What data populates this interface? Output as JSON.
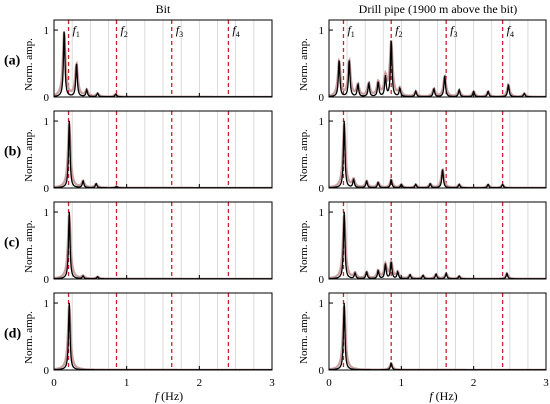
{
  "columns": [
    {
      "title": "Bit"
    },
    {
      "title": "Drill pipe (1900 m above the bit)"
    }
  ],
  "row_labels": [
    "(a)",
    "(b)",
    "(c)",
    "(d)"
  ],
  "y_axis_label": "Norm. amp.",
  "x_axis_label_f": "f",
  "x_axis_label_unit": " (Hz)",
  "colors": {
    "spectrum": "#000000",
    "smoothed": "#c8a0a0",
    "marker": "#d0202a",
    "grid": "#d2d2d2",
    "axis": "#000000"
  },
  "chart_data": {
    "type": "line",
    "x_axis": {
      "label": "f (Hz)",
      "range": [
        0,
        3
      ],
      "ticks": [
        0,
        1,
        2,
        3
      ]
    },
    "y_axis": {
      "label": "Norm. amp.",
      "range": [
        0,
        1.15
      ],
      "ticks": [
        0,
        1
      ]
    },
    "grid": "vertical",
    "harmonic_markers": [
      {
        "label": "f1",
        "x": 0.2
      },
      {
        "label": "f2",
        "x": 0.86
      },
      {
        "label": "f3",
        "x": 1.62
      },
      {
        "label": "f4",
        "x": 2.4
      }
    ],
    "panels": [
      {
        "column": "Bit",
        "row": "(a)",
        "peaks": [
          {
            "x": 0.14,
            "y": 1.0
          },
          {
            "x": 0.31,
            "y": 0.5
          },
          {
            "x": 0.45,
            "y": 0.1
          },
          {
            "x": 0.6,
            "y": 0.05
          },
          {
            "x": 0.85,
            "y": 0.04
          }
        ]
      },
      {
        "column": "Drill pipe",
        "row": "(a)",
        "peaks": [
          {
            "x": 0.14,
            "y": 0.55
          },
          {
            "x": 0.28,
            "y": 0.55
          },
          {
            "x": 0.4,
            "y": 0.18
          },
          {
            "x": 0.55,
            "y": 0.2
          },
          {
            "x": 0.68,
            "y": 0.22
          },
          {
            "x": 0.78,
            "y": 0.3
          },
          {
            "x": 0.86,
            "y": 0.85
          },
          {
            "x": 0.98,
            "y": 0.12
          },
          {
            "x": 1.2,
            "y": 0.08
          },
          {
            "x": 1.45,
            "y": 0.12
          },
          {
            "x": 1.6,
            "y": 0.32
          },
          {
            "x": 1.8,
            "y": 0.1
          },
          {
            "x": 2.0,
            "y": 0.08
          },
          {
            "x": 2.2,
            "y": 0.08
          },
          {
            "x": 2.48,
            "y": 0.18
          },
          {
            "x": 2.7,
            "y": 0.05
          }
        ]
      },
      {
        "column": "Bit",
        "row": "(b)",
        "peaks": [
          {
            "x": 0.21,
            "y": 1.0
          },
          {
            "x": 0.4,
            "y": 0.1
          },
          {
            "x": 0.58,
            "y": 0.06
          },
          {
            "x": 0.86,
            "y": 0.02
          }
        ]
      },
      {
        "column": "Drill pipe",
        "row": "(b)",
        "peaks": [
          {
            "x": 0.21,
            "y": 1.0
          },
          {
            "x": 0.34,
            "y": 0.12
          },
          {
            "x": 0.52,
            "y": 0.1
          },
          {
            "x": 0.68,
            "y": 0.08
          },
          {
            "x": 0.86,
            "y": 0.12
          },
          {
            "x": 1.0,
            "y": 0.05
          },
          {
            "x": 1.2,
            "y": 0.05
          },
          {
            "x": 1.4,
            "y": 0.06
          },
          {
            "x": 1.57,
            "y": 0.28
          },
          {
            "x": 1.8,
            "y": 0.05
          },
          {
            "x": 2.2,
            "y": 0.05
          },
          {
            "x": 2.4,
            "y": 0.05
          }
        ]
      },
      {
        "column": "Bit",
        "row": "(c)",
        "peaks": [
          {
            "x": 0.21,
            "y": 1.0
          },
          {
            "x": 0.4,
            "y": 0.04
          },
          {
            "x": 0.6,
            "y": 0.03
          }
        ]
      },
      {
        "column": "Drill pipe",
        "row": "(c)",
        "peaks": [
          {
            "x": 0.21,
            "y": 1.0
          },
          {
            "x": 0.36,
            "y": 0.08
          },
          {
            "x": 0.52,
            "y": 0.1
          },
          {
            "x": 0.68,
            "y": 0.12
          },
          {
            "x": 0.78,
            "y": 0.22
          },
          {
            "x": 0.86,
            "y": 0.25
          },
          {
            "x": 0.95,
            "y": 0.1
          },
          {
            "x": 1.12,
            "y": 0.06
          },
          {
            "x": 1.3,
            "y": 0.05
          },
          {
            "x": 1.48,
            "y": 0.07
          },
          {
            "x": 1.62,
            "y": 0.08
          },
          {
            "x": 1.8,
            "y": 0.04
          },
          {
            "x": 2.46,
            "y": 0.08
          }
        ]
      },
      {
        "column": "Bit",
        "row": "(d)",
        "peaks": [
          {
            "x": 0.21,
            "y": 1.0
          }
        ]
      },
      {
        "column": "Drill pipe",
        "row": "(d)",
        "peaks": [
          {
            "x": 0.21,
            "y": 1.0
          },
          {
            "x": 0.86,
            "y": 0.1
          }
        ]
      }
    ]
  }
}
